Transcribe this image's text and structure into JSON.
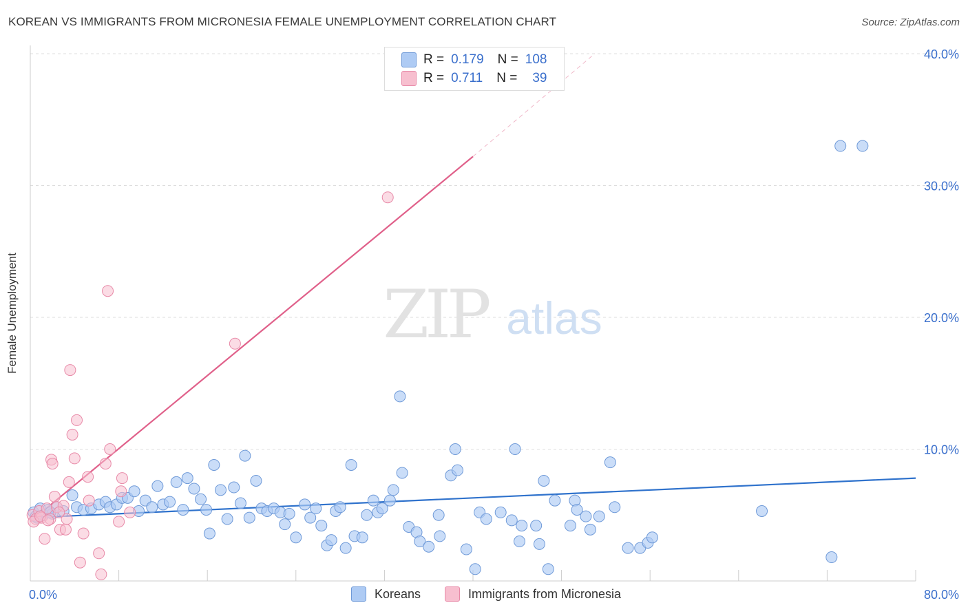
{
  "title": "KOREAN VS IMMIGRANTS FROM MICRONESIA FEMALE UNEMPLOYMENT CORRELATION CHART",
  "source": "Source: ZipAtlas.com",
  "watermark": {
    "zip": "ZIP",
    "atlas": "atlas"
  },
  "colors": {
    "korean_fill": "#aecbf4",
    "korean_stroke": "#6f9ad8",
    "korean_line": "#2f72cc",
    "micronesia_fill": "#f7bfcf",
    "micronesia_stroke": "#e88aa8",
    "micronesia_line": "#e0608a",
    "axis_text": "#3a6fcc",
    "grid": "#dddddd"
  },
  "legend_top": {
    "rows": [
      {
        "r_label": "R =",
        "r_value": "0.179",
        "n_label": "N =",
        "n_value": "108"
      },
      {
        "r_label": "R =",
        "r_value": "0.711",
        "n_label": "N =",
        "n_value": "39"
      }
    ]
  },
  "legend_bottom": {
    "korean": "Koreans",
    "micronesia": "Immigrants from Micronesia"
  },
  "chart_data": {
    "type": "scatter",
    "title": "KOREAN VS IMMIGRANTS FROM MICRONESIA FEMALE UNEMPLOYMENT CORRELATION CHART",
    "xlabel": "",
    "ylabel": "Female Unemployment",
    "xlim": [
      0,
      80
    ],
    "ylim": [
      0,
      40
    ],
    "x_tick_labels": [
      "0.0%",
      "80.0%"
    ],
    "y_tick_labels": [
      "10.0%",
      "20.0%",
      "30.0%",
      "40.0%"
    ],
    "y_ticks": [
      10,
      20,
      30,
      40
    ],
    "legend_position": "top-center",
    "series": [
      {
        "name": "Koreans",
        "r": 0.179,
        "n": 108,
        "trend": {
          "x": [
            0,
            80
          ],
          "y": [
            4.8,
            7.8
          ]
        },
        "points": [
          [
            0.3,
            5.2
          ],
          [
            0.6,
            4.8
          ],
          [
            0.9,
            5.5
          ],
          [
            1.2,
            5.0
          ],
          [
            1.6,
            5.4
          ],
          [
            2.0,
            5.1
          ],
          [
            2.4,
            5.6
          ],
          [
            3.0,
            5.3
          ],
          [
            3.8,
            6.5
          ],
          [
            4.2,
            5.6
          ],
          [
            4.8,
            5.4
          ],
          [
            5.5,
            5.5
          ],
          [
            6.2,
            5.8
          ],
          [
            6.8,
            6.0
          ],
          [
            7.2,
            5.6
          ],
          [
            7.8,
            5.8
          ],
          [
            8.3,
            6.3
          ],
          [
            8.8,
            6.3
          ],
          [
            9.4,
            6.8
          ],
          [
            9.8,
            5.3
          ],
          [
            10.4,
            6.1
          ],
          [
            11.0,
            5.6
          ],
          [
            11.5,
            7.2
          ],
          [
            12.0,
            5.8
          ],
          [
            12.6,
            6.0
          ],
          [
            13.2,
            7.5
          ],
          [
            13.8,
            5.4
          ],
          [
            14.2,
            7.8
          ],
          [
            14.8,
            7.0
          ],
          [
            15.4,
            6.2
          ],
          [
            15.9,
            5.4
          ],
          [
            16.2,
            3.6
          ],
          [
            16.6,
            8.8
          ],
          [
            17.2,
            6.9
          ],
          [
            17.8,
            4.7
          ],
          [
            18.4,
            7.1
          ],
          [
            19.0,
            5.9
          ],
          [
            19.4,
            9.5
          ],
          [
            19.8,
            4.8
          ],
          [
            20.4,
            7.6
          ],
          [
            20.9,
            5.5
          ],
          [
            21.4,
            5.3
          ],
          [
            22.0,
            5.5
          ],
          [
            22.6,
            5.2
          ],
          [
            23.0,
            4.3
          ],
          [
            23.4,
            5.1
          ],
          [
            24.0,
            3.3
          ],
          [
            24.8,
            5.8
          ],
          [
            25.3,
            4.8
          ],
          [
            25.8,
            5.5
          ],
          [
            26.3,
            4.2
          ],
          [
            26.8,
            2.7
          ],
          [
            27.2,
            3.1
          ],
          [
            27.6,
            5.3
          ],
          [
            28.0,
            5.6
          ],
          [
            28.5,
            2.5
          ],
          [
            29.0,
            8.8
          ],
          [
            29.3,
            3.4
          ],
          [
            30.0,
            3.3
          ],
          [
            30.4,
            5.0
          ],
          [
            31.0,
            6.1
          ],
          [
            31.4,
            5.2
          ],
          [
            31.8,
            5.5
          ],
          [
            32.5,
            6.1
          ],
          [
            32.8,
            6.9
          ],
          [
            33.4,
            14.0
          ],
          [
            33.6,
            8.2
          ],
          [
            34.2,
            4.1
          ],
          [
            34.9,
            3.7
          ],
          [
            35.2,
            3.0
          ],
          [
            36.0,
            2.6
          ],
          [
            36.9,
            5.0
          ],
          [
            37.0,
            3.4
          ],
          [
            38.0,
            8.0
          ],
          [
            38.4,
            10.0
          ],
          [
            38.6,
            8.4
          ],
          [
            39.4,
            2.4
          ],
          [
            40.2,
            0.9
          ],
          [
            40.6,
            5.2
          ],
          [
            41.2,
            4.7
          ],
          [
            42.5,
            5.2
          ],
          [
            43.5,
            4.6
          ],
          [
            43.8,
            10.0
          ],
          [
            44.2,
            3.0
          ],
          [
            44.4,
            4.2
          ],
          [
            45.7,
            4.2
          ],
          [
            46.0,
            2.8
          ],
          [
            46.4,
            7.6
          ],
          [
            46.8,
            0.9
          ],
          [
            47.4,
            6.1
          ],
          [
            48.8,
            4.2
          ],
          [
            49.2,
            6.1
          ],
          [
            49.4,
            5.4
          ],
          [
            50.2,
            4.9
          ],
          [
            50.6,
            3.9
          ],
          [
            51.4,
            4.9
          ],
          [
            52.4,
            9.0
          ],
          [
            52.8,
            5.6
          ],
          [
            54.0,
            2.5
          ],
          [
            55.1,
            2.5
          ],
          [
            55.8,
            2.9
          ],
          [
            56.2,
            3.3
          ],
          [
            66.1,
            5.3
          ],
          [
            72.4,
            1.8
          ],
          [
            73.2,
            33.0
          ],
          [
            75.2,
            33.0
          ],
          [
            0.5,
            4.9
          ],
          [
            1.8,
            5.2
          ]
        ]
      },
      {
        "name": "Immigrants from Micronesia",
        "r": 0.711,
        "n": 39,
        "trend": {
          "x": [
            0,
            40
          ],
          "y": [
            4.5,
            32.2
          ]
        },
        "trend_dashed": {
          "x": [
            40,
            51
          ],
          "y": [
            32.2,
            40.0
          ]
        },
        "points": [
          [
            0.2,
            5.0
          ],
          [
            0.5,
            4.7
          ],
          [
            0.8,
            5.3
          ],
          [
            1.0,
            4.8
          ],
          [
            1.3,
            3.2
          ],
          [
            1.5,
            5.5
          ],
          [
            1.8,
            4.7
          ],
          [
            1.9,
            9.2
          ],
          [
            2.0,
            8.9
          ],
          [
            2.2,
            6.4
          ],
          [
            2.4,
            5.6
          ],
          [
            2.7,
            3.9
          ],
          [
            3.0,
            5.7
          ],
          [
            3.2,
            3.9
          ],
          [
            3.3,
            4.7
          ],
          [
            3.5,
            7.5
          ],
          [
            3.6,
            16.0
          ],
          [
            3.8,
            11.1
          ],
          [
            4.0,
            9.3
          ],
          [
            4.2,
            12.2
          ],
          [
            4.5,
            1.4
          ],
          [
            4.8,
            3.6
          ],
          [
            5.2,
            7.9
          ],
          [
            5.3,
            6.1
          ],
          [
            6.2,
            2.1
          ],
          [
            6.4,
            0.5
          ],
          [
            6.8,
            8.9
          ],
          [
            7.2,
            10.0
          ],
          [
            7.0,
            22.0
          ],
          [
            8.0,
            4.5
          ],
          [
            8.2,
            6.8
          ],
          [
            8.3,
            7.8
          ],
          [
            9.0,
            5.2
          ],
          [
            18.5,
            18.0
          ],
          [
            32.3,
            29.1
          ],
          [
            0.3,
            4.5
          ],
          [
            0.9,
            4.9
          ],
          [
            1.6,
            4.6
          ],
          [
            2.6,
            5.2
          ]
        ]
      }
    ]
  }
}
